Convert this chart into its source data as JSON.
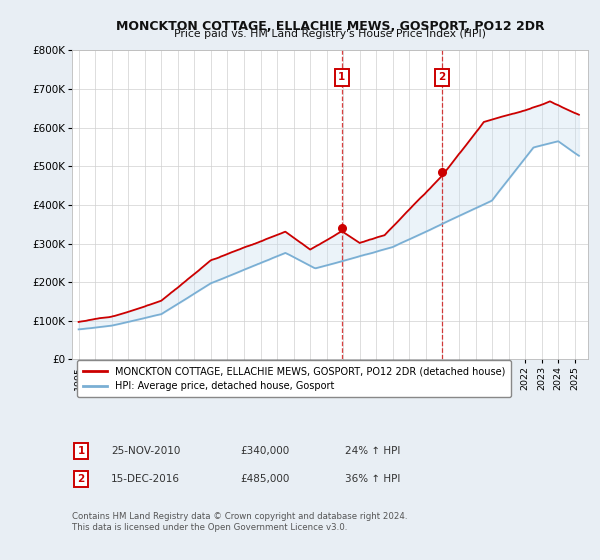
{
  "title": "MONCKTON COTTAGE, ELLACHIE MEWS, GOSPORT, PO12 2DR",
  "subtitle": "Price paid vs. HM Land Registry's House Price Index (HPI)",
  "ylim": [
    0,
    800000
  ],
  "yticks": [
    0,
    100000,
    200000,
    300000,
    400000,
    500000,
    600000,
    700000,
    800000
  ],
  "ytick_labels": [
    "£0",
    "£100K",
    "£200K",
    "£300K",
    "£400K",
    "£500K",
    "£600K",
    "£700K",
    "£800K"
  ],
  "xlim_start": 1994.6,
  "xlim_end": 2025.8,
  "house_color": "#cc0000",
  "hpi_color": "#7aafd4",
  "fill_color": "#c8dff0",
  "background_color": "#e8eef4",
  "sale1_x": 2010.9,
  "sale1_y": 340000,
  "sale2_x": 2016.97,
  "sale2_y": 485000,
  "legend_house": "MONCKTON COTTAGE, ELLACHIE MEWS, GOSPORT, PO12 2DR (detached house)",
  "legend_hpi": "HPI: Average price, detached house, Gosport",
  "sale1_date": "25-NOV-2010",
  "sale1_price": "£340,000",
  "sale1_hpi": "24% ↑ HPI",
  "sale2_date": "15-DEC-2016",
  "sale2_price": "£485,000",
  "sale2_hpi": "36% ↑ HPI",
  "footer": "Contains HM Land Registry data © Crown copyright and database right 2024.\nThis data is licensed under the Open Government Licence v3.0."
}
